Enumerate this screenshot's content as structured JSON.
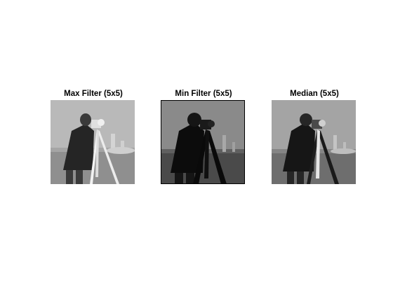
{
  "figure": {
    "panels": [
      {
        "title": "Max Filter (5x5)",
        "image": "cameraman-max-filtered",
        "tone": "light"
      },
      {
        "title": "Min Filter (5x5)",
        "image": "cameraman-min-filtered",
        "tone": "dark"
      },
      {
        "title": "Median (5x5)",
        "image": "cameraman-median-filtered",
        "tone": "mid"
      }
    ]
  }
}
